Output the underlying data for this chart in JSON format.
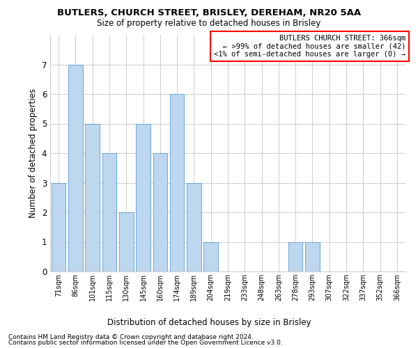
{
  "title": "BUTLERS, CHURCH STREET, BRISLEY, DEREHAM, NR20 5AA",
  "subtitle": "Size of property relative to detached houses in Brisley",
  "xlabel": "Distribution of detached houses by size in Brisley",
  "ylabel": "Number of detached properties",
  "categories": [
    "71sqm",
    "86sqm",
    "101sqm",
    "115sqm",
    "130sqm",
    "145sqm",
    "160sqm",
    "174sqm",
    "189sqm",
    "204sqm",
    "219sqm",
    "233sqm",
    "248sqm",
    "263sqm",
    "278sqm",
    "293sqm",
    "307sqm",
    "322sqm",
    "337sqm",
    "352sqm",
    "366sqm"
  ],
  "values": [
    3,
    7,
    5,
    4,
    2,
    5,
    4,
    6,
    3,
    1,
    0,
    0,
    0,
    0,
    1,
    1,
    0,
    0,
    0,
    0,
    0
  ],
  "bar_color": "#BDD7EE",
  "bar_edgecolor": "#5B9BD5",
  "ylim": [
    0,
    8
  ],
  "yticks": [
    0,
    1,
    2,
    3,
    4,
    5,
    6,
    7
  ],
  "grid_color": "#CCCCCC",
  "annotation_lines": [
    "BUTLERS CHURCH STREET: 366sqm",
    "← >99% of detached houses are smaller (42)",
    "<1% of semi-detached houses are larger (0) →"
  ],
  "footnote1": "Contains HM Land Registry data © Crown copyright and database right 2024.",
  "footnote2": "Contains public sector information licensed under the Open Government Licence v3.0.",
  "background_color": "#FFFFFF"
}
